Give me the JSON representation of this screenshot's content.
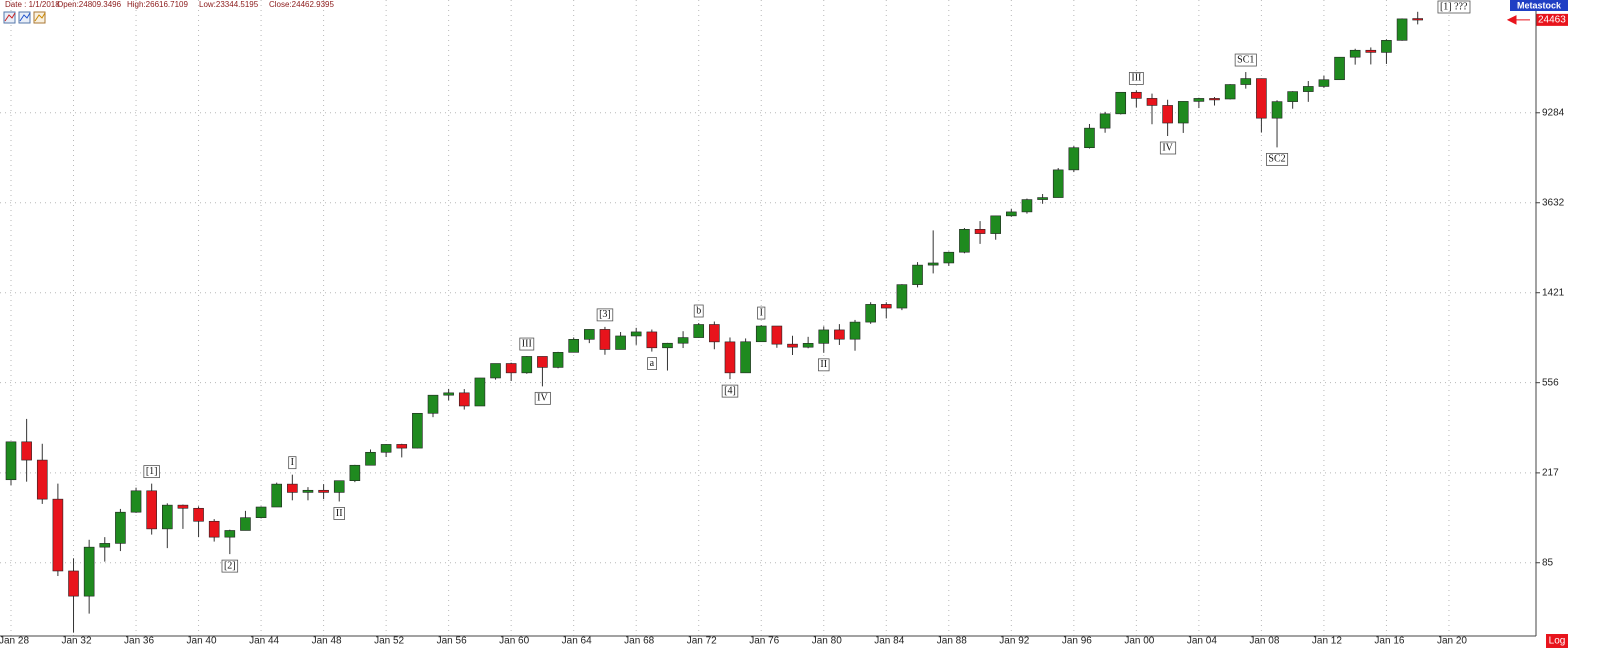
{
  "chart_data": {
    "type": "candlestick",
    "info": [
      "Date : 1/1/2018",
      "Open:24809.3496",
      "High:26616.7109",
      "Low:23344.5195",
      "Close:24462.9395"
    ],
    "brand": "Metastock",
    "scale_label": "Log",
    "log": true,
    "grid": true,
    "up_color": "#1f8a1f",
    "down_color": "#e8141c",
    "categories": [
      "Jan 28",
      null,
      null,
      null,
      "Jan 32",
      null,
      null,
      null,
      "Jan 36",
      null,
      null,
      null,
      "Jan 40",
      null,
      null,
      null,
      "Jan 44",
      null,
      null,
      null,
      "Jan 48",
      null,
      null,
      null,
      "Jan 52",
      null,
      null,
      null,
      "Jan 56",
      null,
      null,
      null,
      "Jan 60",
      null,
      null,
      null,
      "Jan 64",
      null,
      null,
      null,
      "Jan 68",
      null,
      null,
      null,
      "Jan 72",
      null,
      null,
      null,
      "Jan 76",
      null,
      null,
      null,
      "Jan 80",
      null,
      null,
      null,
      "Jan 84",
      null,
      null,
      null,
      "Jan 88",
      null,
      null,
      null,
      "Jan 92",
      null,
      null,
      null,
      "Jan 96",
      null,
      null,
      null,
      "Jan 00",
      null,
      null,
      null,
      "Jan 04",
      null,
      null,
      null,
      "Jan 08",
      null,
      null,
      null,
      "Jan 12",
      null,
      null,
      null,
      "Jan 16",
      null,
      null,
      null,
      "Jan 20"
    ],
    "open": [
      202,
      300,
      248,
      165,
      78,
      60,
      100,
      104,
      144,
      180,
      121,
      155,
      150,
      131,
      111,
      119,
      136,
      152,
      193,
      177,
      181,
      177,
      200,
      235,
      269,
      292,
      281,
      404,
      488,
      500,
      436,
      584,
      679,
      616,
      731,
      652,
      763,
      874,
      969,
      786,
      905,
      944,
      800,
      839,
      890,
      1020,
      851,
      616,
      852,
      1004,
      831,
      805,
      838,
      964,
      875,
      1046,
      1258,
      1211,
      1546,
      1895,
      1938,
      2168,
      2753,
      2633,
      3168,
      3301,
      3754,
      3834,
      5117,
      6448,
      7908,
      9181,
      11497,
      10787,
      10022,
      8342,
      10454,
      10783,
      10718,
      12463,
      13265,
      8776,
      10428,
      11578,
      12218,
      13104,
      16577,
      17823,
      17425,
      19763,
      24809.3496,
      null,
      null
    ],
    "high": [
      300,
      381,
      294,
      194,
      89,
      108,
      111,
      149,
      186,
      194,
      158,
      156,
      153,
      134,
      120,
      146,
      153,
      196,
      213,
      187,
      193,
      200,
      236,
      277,
      293,
      294,
      404,
      488,
      521,
      520,
      584,
      679,
      685,
      734,
      731,
      767,
      891,
      969,
      995,
      943,
      985,
      968,
      842,
      951,
      1036,
      1052,
      891,
      882,
      1014,
      1004,
      907,
      897,
      1000,
      1024,
      1070,
      1287,
      1287,
      1553,
      1955,
      2722,
      2183,
      2791,
      2999,
      3168,
      3413,
      3794,
      3978,
      5216,
      6560,
      8259,
      9374,
      11497,
      11723,
      11338,
      10635,
      10454,
      10854,
      10940,
      12511,
      14198,
      13279,
      10580,
      11625,
      12929,
      13661,
      16577,
      18103,
      18351,
      19987,
      24838,
      26616.7109,
      null,
      null
    ],
    "low": [
      191,
      198,
      157,
      74,
      41,
      50,
      86,
      96,
      143,
      114,
      99,
      121,
      111,
      106,
      93,
      119,
      135,
      152,
      163,
      163,
      165,
      161,
      197,
      235,
      256,
      255,
      280,
      388,
      462,
      420,
      436,
      574,
      566,
      610,
      535,
      646,
      763,
      840,
      744,
      786,
      825,
      769,
      631,
      798,
      889,
      788,
      577,
      616,
      852,
      800,
      742,
      796,
      759,
      824,
      776,
      1027,
      1087,
      1185,
      1502,
      1738,
      1879,
      2144,
      2365,
      2470,
      3136,
      3242,
      3593,
      3832,
      5000,
      6391,
      7539,
      9120,
      9796,
      8236,
      7286,
      7524,
      9750,
      10012,
      10668,
      11939,
      7552,
      6470,
      9686,
      10404,
      12035,
      13104,
      15340,
      15370,
      15451,
      19677,
      23344.5195,
      null,
      null
    ],
    "close": [
      300,
      248,
      165,
      78,
      60,
      100,
      104,
      144,
      180,
      121,
      155,
      150,
      131,
      111,
      119,
      136,
      152,
      193,
      177,
      181,
      177,
      200,
      235,
      269,
      292,
      281,
      404,
      488,
      500,
      436,
      584,
      679,
      616,
      731,
      652,
      763,
      874,
      969,
      786,
      905,
      944,
      800,
      839,
      890,
      1020,
      851,
      616,
      852,
      1004,
      831,
      805,
      838,
      964,
      875,
      1046,
      1258,
      1211,
      1546,
      1895,
      1938,
      2168,
      2753,
      2633,
      3168,
      3301,
      3754,
      3834,
      5117,
      6448,
      7908,
      9181,
      11497,
      10787,
      10022,
      8342,
      10454,
      10783,
      10718,
      12463,
      13265,
      8776,
      10428,
      11578,
      12218,
      13104,
      16577,
      17823,
      17425,
      19763,
      24719,
      24462.9395,
      null,
      null
    ],
    "last_label": "24463",
    "ylim": [
      40,
      30100
    ],
    "yticks": [
      85,
      217,
      556,
      1421,
      3632,
      9284
    ],
    "annotations": [
      {
        "text": "[1]",
        "index": 9,
        "side": "above"
      },
      {
        "text": "[2]",
        "index": 14,
        "side": "below"
      },
      {
        "text": "I",
        "index": 18,
        "side": "above"
      },
      {
        "text": "II",
        "index": 21,
        "side": "below"
      },
      {
        "text": "III",
        "index": 33,
        "side": "above"
      },
      {
        "text": "IV",
        "index": 34,
        "side": "below"
      },
      {
        "text": "[3]",
        "index": 38,
        "side": "above"
      },
      {
        "text": "a",
        "index": 41,
        "side": "below"
      },
      {
        "text": "b",
        "index": 44,
        "side": "above"
      },
      {
        "text": "[4]",
        "index": 46,
        "side": "below"
      },
      {
        "text": "I",
        "index": 48,
        "side": "above"
      },
      {
        "text": "II",
        "index": 52,
        "side": "below"
      },
      {
        "text": "III",
        "index": 72,
        "side": "above"
      },
      {
        "text": "IV",
        "index": 74,
        "side": "below"
      },
      {
        "text": "SC1",
        "index": 79,
        "side": "above"
      },
      {
        "text": "SC2",
        "index": 81,
        "side": "below"
      },
      {
        "text": "[1] ???",
        "index": 90,
        "side": "right"
      }
    ]
  }
}
